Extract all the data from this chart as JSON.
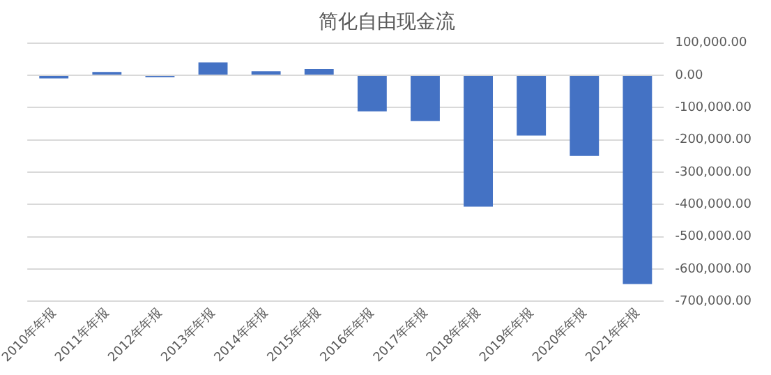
{
  "chart_data": {
    "type": "bar",
    "title": "简化自由现金流",
    "categories": [
      "2010年年报",
      "2011年年报",
      "2012年年报",
      "2013年年报",
      "2014年年报",
      "2015年年报",
      "2016年年报",
      "2017年年报",
      "2018年年报",
      "2019年年报",
      "2020年年报",
      "2021年年报"
    ],
    "values": [
      -10000,
      10000,
      -6000,
      40000,
      12000,
      19000,
      -112000,
      -142000,
      -407000,
      -187000,
      -250000,
      -647000
    ],
    "color": "#4472c4",
    "ylim": [
      -700000,
      100000
    ],
    "yticks": [
      {
        "value": 100000,
        "label": "100,000.00"
      },
      {
        "value": 0,
        "label": "0.00"
      },
      {
        "value": -100000,
        "label": "-100,000.00"
      },
      {
        "value": -200000,
        "label": "-200,000.00"
      },
      {
        "value": -300000,
        "label": "-300,000.00"
      },
      {
        "value": -400000,
        "label": "-400,000.00"
      },
      {
        "value": -500000,
        "label": "-500,000.00"
      },
      {
        "value": -600000,
        "label": "-600,000.00"
      },
      {
        "value": -700000,
        "label": "-700,000.00"
      }
    ],
    "grid": "y"
  }
}
